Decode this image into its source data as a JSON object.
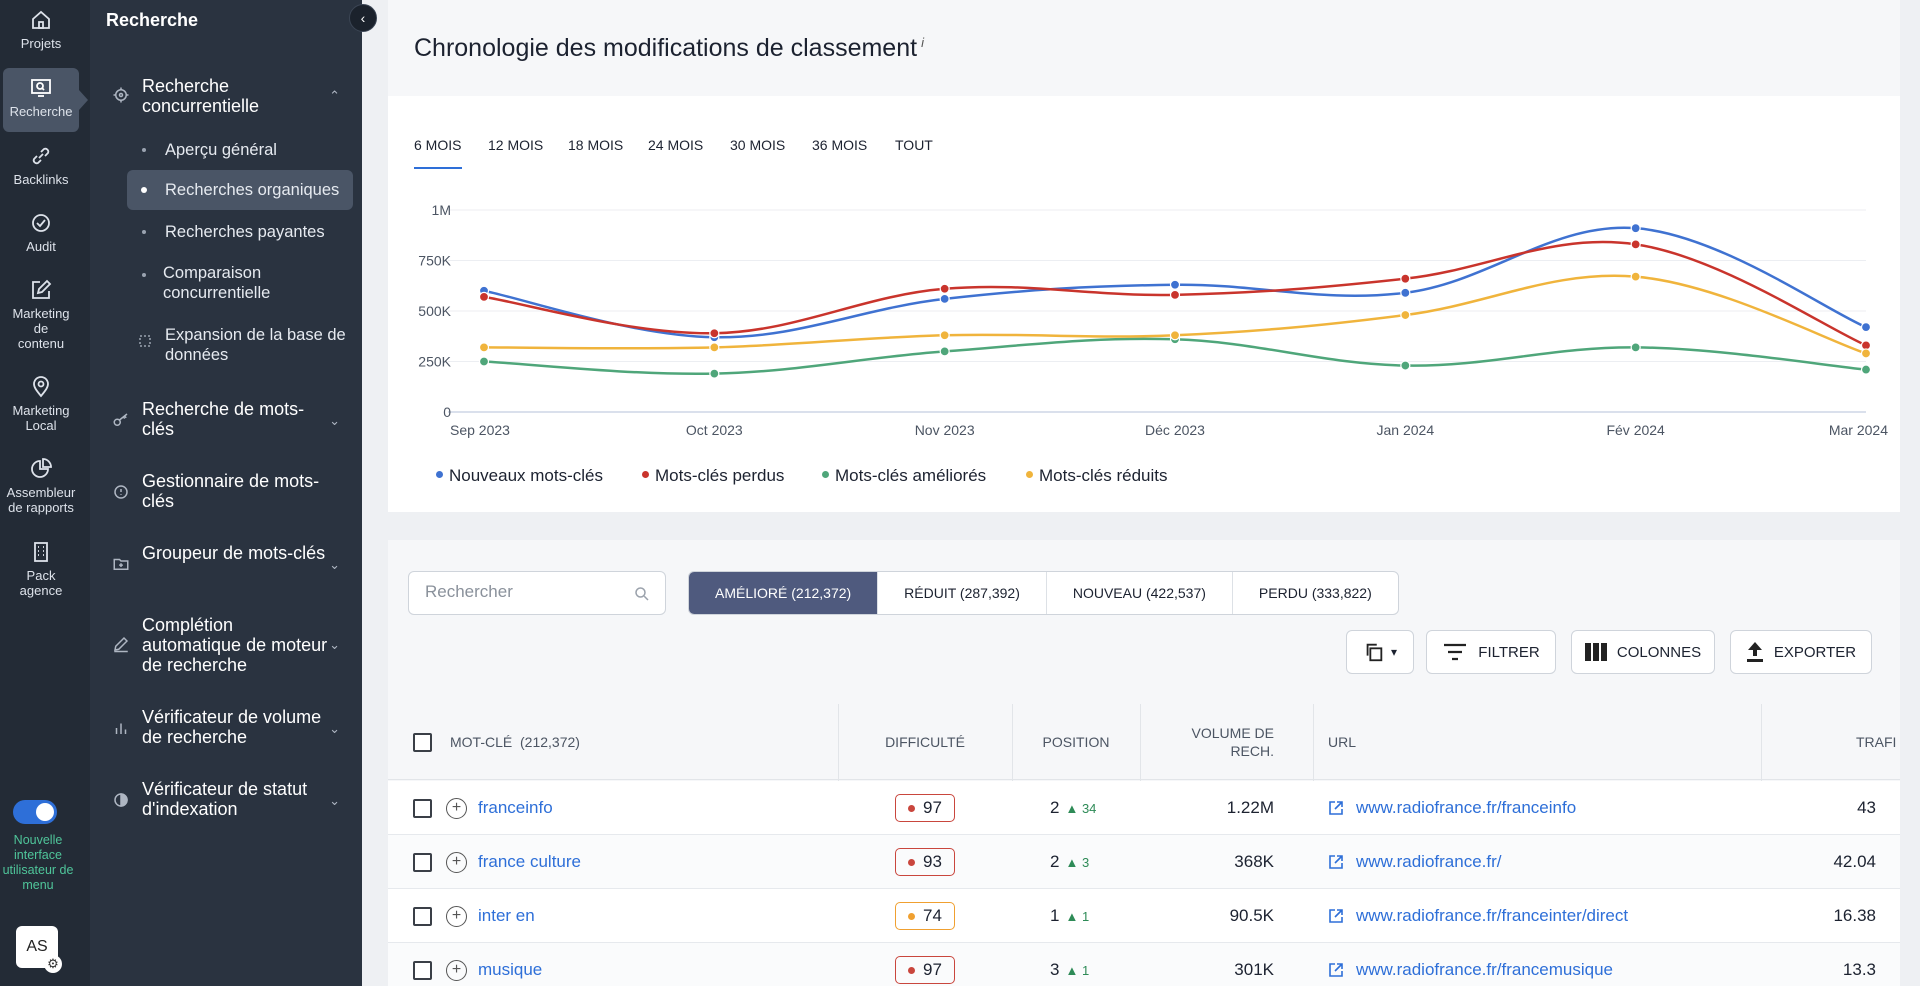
{
  "rail": {
    "items": [
      {
        "label": "Projets"
      },
      {
        "label": "Recherche"
      },
      {
        "label": "Backlinks"
      },
      {
        "label": "Audit"
      },
      {
        "label": "Marketing de contenu"
      },
      {
        "label": "Marketing Local"
      },
      {
        "label": "Assembleur de rapports"
      },
      {
        "label": "Pack agence"
      }
    ],
    "toggle_label": "Nouvelle interface utilisateur de menu",
    "avatar": "AS"
  },
  "sidenav": {
    "title": "Recherche",
    "groups": [
      {
        "label": "Recherche concurrentielle"
      },
      {
        "label": "Recherche de mots-clés"
      },
      {
        "label": "Gestionnaire de mots-clés"
      },
      {
        "label": "Groupeur de mots-clés"
      },
      {
        "label": "Complétion automatique de moteur de recherche"
      },
      {
        "label": "Vérificateur de volume de recherche"
      },
      {
        "label": "Vérificateur de statut d'indexation"
      }
    ],
    "subitems": [
      {
        "label": "Aperçu général"
      },
      {
        "label": "Recherches organiques"
      },
      {
        "label": "Recherches payantes"
      },
      {
        "label": "Comparaison concurrentielle"
      },
      {
        "label": "Expansion de la base de données"
      }
    ]
  },
  "chart_card": {
    "title": "Chronologie des modifications de classement",
    "info": "i",
    "tabs": [
      "6 MOIS",
      "12 MOIS",
      "18 MOIS",
      "24 MOIS",
      "30 MOIS",
      "36 MOIS",
      "TOUT"
    ]
  },
  "chart_data": {
    "type": "line",
    "x": [
      "Sep 2023",
      "Oct 2023",
      "Nov 2023",
      "Déc 2023",
      "Jan 2024",
      "Fév 2024",
      "Mar 2024"
    ],
    "y_ticks": [
      "0",
      "250K",
      "500K",
      "750K",
      "1M"
    ],
    "ylim": [
      0,
      1000000
    ],
    "grid": true,
    "legend_position": "bottom-left",
    "series": [
      {
        "name": "Nouveaux mots-clés",
        "color": "#3f72d1",
        "values": [
          600000,
          370000,
          560000,
          630000,
          590000,
          910000,
          420000
        ]
      },
      {
        "name": "Mots-clés perdus",
        "color": "#c9342c",
        "values": [
          570000,
          390000,
          610000,
          580000,
          660000,
          830000,
          330000
        ]
      },
      {
        "name": "Mots-clés améliorés",
        "color": "#4fa67a",
        "values": [
          250000,
          190000,
          300000,
          360000,
          230000,
          320000,
          210000
        ]
      },
      {
        "name": "Mots-clés réduits",
        "color": "#f0b43c",
        "values": [
          320000,
          320000,
          380000,
          380000,
          480000,
          670000,
          290000
        ]
      }
    ]
  },
  "table_card": {
    "search_placeholder": "Rechercher",
    "segments": [
      "AMÉLIORÉ (212,372)",
      "RÉDUIT (287,392)",
      "NOUVEAU (422,537)",
      "PERDU (333,822)"
    ],
    "buttons": {
      "filter": "FILTRER",
      "columns": "COLONNES",
      "export": "EXPORTER"
    },
    "headers": {
      "keyword": "MOT-CLÉ",
      "keyword_count": "(212,372)",
      "difficulty": "DIFFICULTÉ",
      "position": "POSITION",
      "volume": "VOLUME DE RECH.",
      "url": "URL",
      "traffic": "TRAFI"
    },
    "rows": [
      {
        "keyword": "franceinfo",
        "difficulty": "97",
        "diff_color": "#c9463d",
        "position": "2",
        "delta": "34",
        "volume": "1.22M",
        "url": "www.radiofrance.fr/franceinfo",
        "traffic": "43"
      },
      {
        "keyword": "france culture",
        "difficulty": "93",
        "diff_color": "#c9463d",
        "position": "2",
        "delta": "3",
        "volume": "368K",
        "url": "www.radiofrance.fr/",
        "traffic": "42.04"
      },
      {
        "keyword": "inter en",
        "difficulty": "74",
        "diff_color": "#f0a030",
        "position": "1",
        "delta": "1",
        "volume": "90.5K",
        "url": "www.radiofrance.fr/franceinter/direct",
        "traffic": "16.38"
      },
      {
        "keyword": "musique",
        "difficulty": "97",
        "diff_color": "#c9463d",
        "position": "3",
        "delta": "1",
        "volume": "301K",
        "url": "www.radiofrance.fr/francemusique",
        "traffic": "13.3"
      }
    ]
  }
}
